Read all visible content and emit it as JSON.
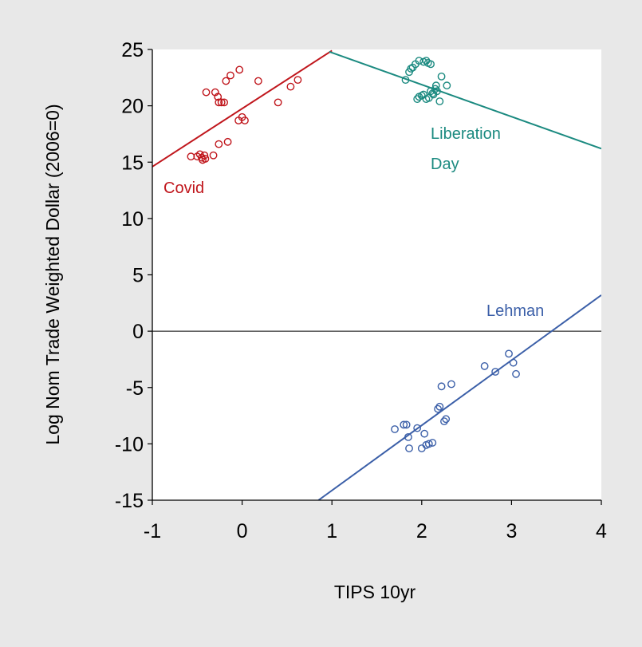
{
  "chart_data": {
    "type": "scatter",
    "title": "",
    "xlabel": "TIPS 10yr",
    "ylabel": "Log Nom Trade Weighted Dollar (2006=0)",
    "xlim": [
      -1,
      4
    ],
    "ylim": [
      -15,
      25
    ],
    "xticks": [
      -1,
      0,
      1,
      2,
      3,
      4
    ],
    "yticks": [
      25,
      20,
      15,
      10,
      5,
      0,
      -5,
      -10,
      -15
    ],
    "zero_line": true,
    "grid": false,
    "legend": "none",
    "series": [
      {
        "label": "Covid",
        "color": "#c0161c",
        "points": [
          [
            -0.57,
            15.5
          ],
          [
            -0.5,
            15.5
          ],
          [
            -0.47,
            15.7
          ],
          [
            -0.45,
            15.4
          ],
          [
            -0.44,
            15.2
          ],
          [
            -0.42,
            15.6
          ],
          [
            -0.41,
            15.3
          ],
          [
            -0.32,
            15.6
          ],
          [
            -0.26,
            16.6
          ],
          [
            -0.16,
            16.8
          ],
          [
            -0.4,
            21.2
          ],
          [
            -0.3,
            21.2
          ],
          [
            -0.27,
            20.8
          ],
          [
            -0.26,
            20.3
          ],
          [
            -0.23,
            20.3
          ],
          [
            -0.2,
            20.3
          ],
          [
            -0.18,
            22.2
          ],
          [
            -0.13,
            22.7
          ],
          [
            -0.03,
            23.2
          ],
          [
            0.18,
            22.2
          ],
          [
            -0.04,
            18.7
          ],
          [
            0.0,
            19.0
          ],
          [
            0.03,
            18.7
          ],
          [
            0.4,
            20.3
          ],
          [
            0.54,
            21.7
          ],
          [
            0.62,
            22.3
          ]
        ],
        "fit": [
          [
            -1,
            14.6
          ],
          [
            1,
            24.9
          ]
        ]
      },
      {
        "label": "Liberation Day",
        "color": "#1b8a80",
        "points": [
          [
            1.82,
            22.3
          ],
          [
            1.86,
            23.0
          ],
          [
            1.88,
            23.3
          ],
          [
            1.9,
            23.4
          ],
          [
            1.93,
            23.7
          ],
          [
            1.97,
            24.0
          ],
          [
            2.02,
            23.9
          ],
          [
            2.05,
            24.0
          ],
          [
            2.07,
            23.8
          ],
          [
            2.1,
            23.7
          ],
          [
            1.95,
            20.6
          ],
          [
            1.97,
            20.8
          ],
          [
            2.0,
            20.9
          ],
          [
            2.02,
            21.0
          ],
          [
            2.05,
            20.6
          ],
          [
            2.08,
            20.7
          ],
          [
            2.1,
            21.3
          ],
          [
            2.13,
            21.0
          ],
          [
            2.15,
            21.5
          ],
          [
            2.17,
            21.3
          ],
          [
            2.2,
            20.4
          ],
          [
            2.22,
            22.6
          ],
          [
            2.28,
            21.8
          ],
          [
            2.12,
            21.1
          ],
          [
            2.16,
            21.8
          ]
        ],
        "fit": [
          [
            0.97,
            24.8
          ],
          [
            4,
            16.2
          ]
        ]
      },
      {
        "label": "Lehman",
        "color": "#3b5fa8",
        "points": [
          [
            1.7,
            -8.7
          ],
          [
            1.8,
            -8.3
          ],
          [
            1.83,
            -8.3
          ],
          [
            1.85,
            -9.4
          ],
          [
            1.86,
            -10.4
          ],
          [
            1.95,
            -8.6
          ],
          [
            2.0,
            -10.4
          ],
          [
            2.03,
            -9.1
          ],
          [
            2.05,
            -10.1
          ],
          [
            2.08,
            -10.0
          ],
          [
            2.12,
            -9.9
          ],
          [
            2.18,
            -6.9
          ],
          [
            2.2,
            -6.7
          ],
          [
            2.22,
            -4.9
          ],
          [
            2.25,
            -8.0
          ],
          [
            2.27,
            -7.8
          ],
          [
            2.33,
            -4.7
          ],
          [
            2.7,
            -3.1
          ],
          [
            2.82,
            -3.6
          ],
          [
            2.97,
            -2.0
          ],
          [
            3.02,
            -2.8
          ],
          [
            3.05,
            -3.8
          ]
        ],
        "fit": [
          [
            0.85,
            -15
          ],
          [
            4,
            3.2
          ]
        ]
      }
    ]
  }
}
